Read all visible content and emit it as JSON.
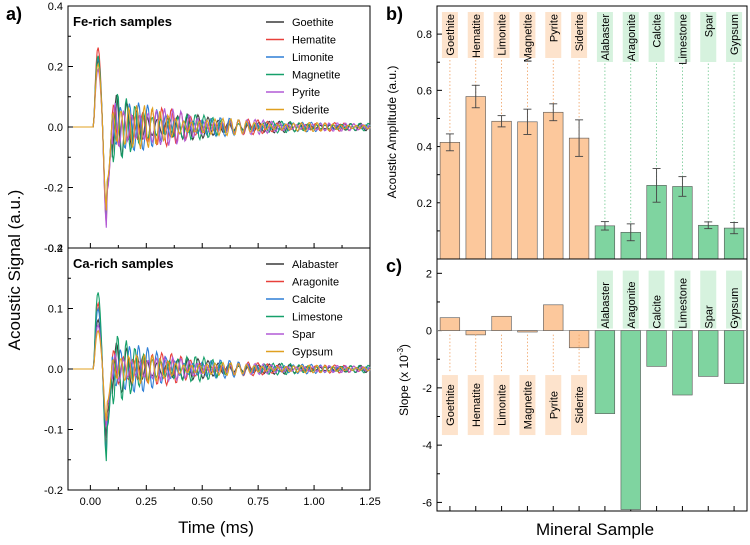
{
  "colors": {
    "fe_bar": "#fcc89c",
    "ca_bar": "#7fd4a0",
    "fe_label_bg": "#fde3cc",
    "ca_label_bg": "#d6f2de",
    "series": [
      "#3a3a3a",
      "#e8403a",
      "#2f7fd6",
      "#16a06a",
      "#b25ad6",
      "#e0a020"
    ]
  },
  "chart_data": [
    {
      "panel": "a",
      "panel_label": "a)",
      "type": "line",
      "title": "Fe-rich samples",
      "xlabel": "Time (ms)",
      "ylabel": "Acoustic Signal (a.u.)",
      "xlim": [
        -0.1,
        1.25
      ],
      "ylim": [
        -0.4,
        0.4
      ],
      "yticks": [
        "-0.4",
        "-0.2",
        "0.0",
        "0.2",
        "0.4"
      ],
      "legend_position": "top-right",
      "series": [
        {
          "name": "Goethite",
          "peak": 0.24,
          "trough": -0.3
        },
        {
          "name": "Hematite",
          "peak": 0.29,
          "trough": -0.34
        },
        {
          "name": "Limonite",
          "peak": 0.25,
          "trough": -0.31
        },
        {
          "name": "Magnetite",
          "peak": 0.26,
          "trough": -0.32
        },
        {
          "name": "Pyrite",
          "peak": 0.21,
          "trough": -0.35
        },
        {
          "name": "Siderite",
          "peak": 0.23,
          "trough": -0.29
        }
      ]
    },
    {
      "panel": "a-lower",
      "type": "line",
      "title": "Ca-rich samples",
      "xlabel": "Time (ms)",
      "xlim": [
        -0.1,
        1.25
      ],
      "ylim": [
        -0.2,
        0.2
      ],
      "xticks": [
        "0.00",
        "0.25",
        "0.50",
        "0.75",
        "1.00",
        "1.25"
      ],
      "yticks": [
        "-0.2",
        "-0.1",
        "0.0",
        "0.1",
        "0.2"
      ],
      "legend_position": "top-right",
      "series": [
        {
          "name": "Alabaster",
          "peak": 0.09,
          "trough": -0.12
        },
        {
          "name": "Aragonite",
          "peak": 0.12,
          "trough": -0.14
        },
        {
          "name": "Calcite",
          "peak": 0.11,
          "trough": -0.15
        },
        {
          "name": "Limestone",
          "peak": 0.14,
          "trough": -0.16
        },
        {
          "name": "Spar",
          "peak": 0.08,
          "trough": -0.1
        },
        {
          "name": "Gypsum",
          "peak": 0.07,
          "trough": -0.09
        }
      ]
    },
    {
      "panel": "b",
      "panel_label": "b)",
      "type": "bar",
      "ylabel": "Acoustic Amplitude (a.u.)",
      "ylim": [
        0,
        0.9
      ],
      "yticks": [
        "0.2",
        "0.4",
        "0.6",
        "0.8"
      ],
      "categories": [
        "Goethite",
        "Hematite",
        "Limonite",
        "Magnetite",
        "Pyrite",
        "Siderite",
        "Alabaster",
        "Aragonite",
        "Calcite",
        "Limestone",
        "Spar",
        "Gypsum"
      ],
      "groups": [
        "Fe",
        "Fe",
        "Fe",
        "Fe",
        "Fe",
        "Fe",
        "Ca",
        "Ca",
        "Ca",
        "Ca",
        "Ca",
        "Ca"
      ],
      "values": [
        0.415,
        0.578,
        0.49,
        0.488,
        0.522,
        0.43,
        0.118,
        0.095,
        0.262,
        0.258,
        0.12,
        0.11
      ],
      "errors": [
        0.03,
        0.04,
        0.02,
        0.045,
        0.03,
        0.065,
        0.015,
        0.03,
        0.06,
        0.035,
        0.012,
        0.02
      ]
    },
    {
      "panel": "c",
      "panel_label": "c)",
      "type": "bar",
      "ylabel": "Slope (x 10",
      "ylabel_sup": "-3",
      "ylabel_end": ")",
      "xlabel": "Mineral Sample",
      "ylim": [
        -6.3,
        2.5
      ],
      "yticks": [
        "-6",
        "-4",
        "-2",
        "0",
        "2"
      ],
      "categories": [
        "Goethite",
        "Hematite",
        "Limonite",
        "Magnetite",
        "Pyrite",
        "Siderite",
        "Alabaster",
        "Aragonite",
        "Calcite",
        "Limestone",
        "Spar",
        "Gypsum"
      ],
      "groups": [
        "Fe",
        "Fe",
        "Fe",
        "Fe",
        "Fe",
        "Fe",
        "Ca",
        "Ca",
        "Ca",
        "Ca",
        "Ca",
        "Ca"
      ],
      "values": [
        0.45,
        -0.15,
        0.5,
        -0.05,
        0.9,
        -0.6,
        -2.9,
        -6.25,
        -1.25,
        -2.25,
        -1.6,
        -1.85
      ]
    }
  ]
}
